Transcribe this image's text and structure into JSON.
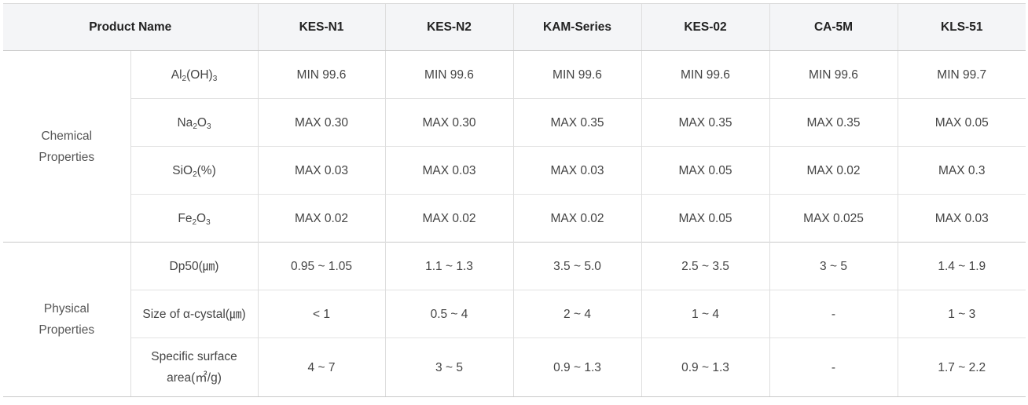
{
  "header": {
    "product_name": "Product Name",
    "products": [
      "KES-N1",
      "KES-N2",
      "KAM-Series",
      "KES-02",
      "CA-5M",
      "KLS-51"
    ]
  },
  "groups": [
    {
      "label_line1": "Chemical",
      "label_line2": "Properties",
      "rows": [
        {
          "property": "Al2(OH)3",
          "values": [
            "MIN 99.6",
            "MIN 99.6",
            "MIN 99.6",
            "MIN 99.6",
            "MIN 99.6",
            "MIN 99.7"
          ]
        },
        {
          "property": "Na2O3",
          "values": [
            "MAX 0.30",
            "MAX 0.30",
            "MAX 0.35",
            "MAX 0.35",
            "MAX 0.35",
            "MAX 0.05"
          ]
        },
        {
          "property": "SiO2(%)",
          "values": [
            "MAX 0.03",
            "MAX 0.03",
            "MAX 0.03",
            "MAX 0.05",
            "MAX 0.02",
            "MAX 0.3"
          ]
        },
        {
          "property": "Fe2O3",
          "values": [
            "MAX 0.02",
            "MAX 0.02",
            "MAX 0.02",
            "MAX 0.05",
            "MAX 0.025",
            "MAX 0.03"
          ]
        }
      ]
    },
    {
      "label_line1": "Physical",
      "label_line2": "Properties",
      "rows": [
        {
          "property": "Dp50(㎛)",
          "values": [
            "0.95 ~ 1.05",
            "1.1 ~ 1.3",
            "3.5 ~ 5.0",
            "2.5 ~ 3.5",
            "3 ~ 5",
            "1.4 ~ 1.9"
          ]
        },
        {
          "property": "Size of α-cystal(㎛)",
          "values": [
            "< 1",
            "0.5 ~ 4",
            "2 ~ 4",
            "1 ~ 4",
            "-",
            "1 ~ 3"
          ]
        },
        {
          "property_line1": "Specific surface",
          "property_line2": "area(㎡/g)",
          "values": [
            "4 ~ 7",
            "3 ~ 5",
            "0.9 ~ 1.3",
            "0.9 ~ 1.3",
            "-",
            "1.7 ~ 2.2"
          ]
        }
      ]
    }
  ]
}
